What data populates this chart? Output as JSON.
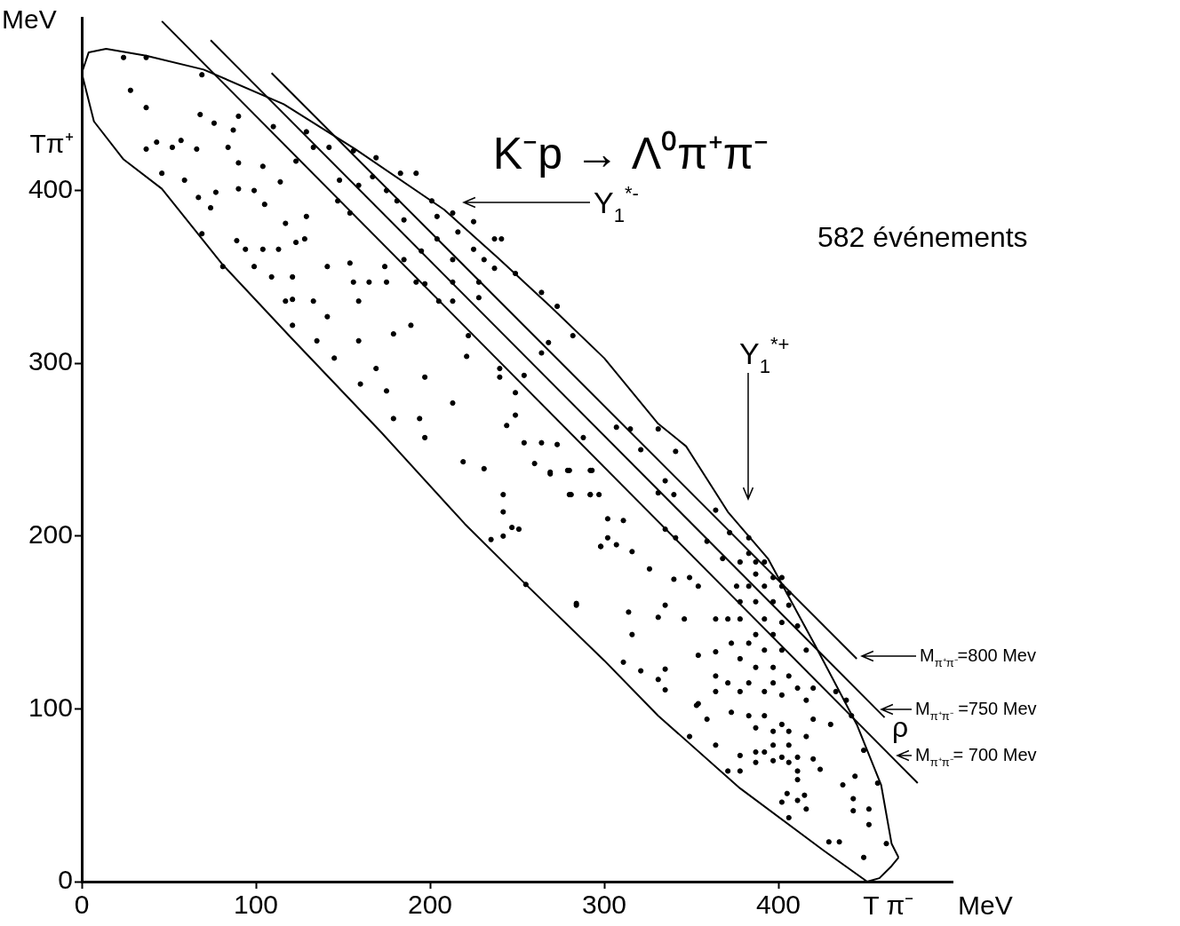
{
  "chart_data": {
    "type": "scatter",
    "title": "K⁻p → Λ⁰π⁺π⁻",
    "xlabel": "T π⁻",
    "ylabel": "Tπ⁺",
    "xlim": [
      0,
      500
    ],
    "ylim": [
      0,
      500
    ],
    "xticks": [
      0,
      100,
      200,
      300,
      400
    ],
    "yticks": [
      0,
      100,
      200,
      300,
      400
    ],
    "grid": false,
    "legend": false,
    "marker": "circle",
    "series": [
      {
        "color": "#000000",
        "x": [
          24,
          37,
          28,
          37,
          69,
          68,
          76,
          90,
          87,
          37,
          43,
          52,
          57,
          46,
          59,
          66,
          67,
          74,
          77,
          69,
          84,
          90,
          90,
          99,
          104,
          110,
          105,
          114,
          117,
          123,
          129,
          133,
          129,
          142,
          148,
          147,
          154,
          156,
          159,
          167,
          169,
          175,
          183,
          181,
          185,
          192,
          201,
          204,
          213,
          216,
          225,
          237,
          241,
          237,
          249,
          264,
          273,
          282,
          268,
          264,
          225,
          231,
          204,
          213,
          195,
          185,
          174,
          165,
          156,
          154,
          141,
          159,
          175,
          192,
          197,
          205,
          213,
          213,
          228,
          228,
          222,
          221,
          240,
          240,
          254,
          249,
          213,
          197,
          179,
          189,
          179,
          194,
          175,
          160,
          169,
          159,
          141,
          121,
          135,
          145,
          121,
          133,
          117,
          109,
          121,
          99,
          94,
          104,
          113,
          89,
          81,
          123,
          128,
          244,
          254,
          249,
          264,
          273,
          288,
          307,
          315,
          331,
          341,
          321,
          269,
          280,
          292,
          281,
          292,
          297,
          335,
          331,
          340,
          302,
          311,
          302,
          307,
          298,
          316,
          335,
          341,
          326,
          340,
          349,
          354,
          284,
          314,
          335,
          316,
          346,
          364,
          371,
          359,
          364,
          372,
          383,
          368,
          378,
          383,
          387,
          392,
          387,
          397,
          402,
          376,
          383,
          392,
          402,
          406,
          378,
          387,
          397,
          406,
          378,
          392,
          402,
          411,
          387,
          397,
          373,
          383,
          392,
          402,
          416,
          378,
          387,
          397,
          406,
          364,
          371,
          383,
          397,
          411,
          420,
          378,
          392,
          364,
          402,
          416,
          433,
          439,
          442,
          354,
          359,
          373,
          383,
          392,
          402,
          420,
          430,
          387,
          397,
          406,
          416,
          349,
          364,
          397,
          406,
          378,
          387,
          392,
          402,
          411,
          449,
          387,
          397,
          406,
          420,
          371,
          378,
          411,
          424,
          411,
          444,
          437,
          457,
          405,
          415,
          402,
          411,
          443,
          416,
          443,
          452,
          452,
          406,
          429,
          435,
          462,
          449,
          311,
          321,
          335,
          331,
          335,
          354,
          364,
          353,
          331,
          197,
          219,
          231,
          242,
          242,
          247,
          251,
          242,
          235,
          255,
          284,
          260,
          269,
          279,
          293,
          280,
          292,
          298
        ],
        "values": [
          477,
          477,
          458,
          448,
          467,
          444,
          439,
          443,
          435,
          424,
          428,
          425,
          429,
          410,
          406,
          424,
          396,
          390,
          399,
          375,
          425,
          416,
          401,
          400,
          414,
          437,
          392,
          405,
          381,
          417,
          385,
          425,
          434,
          425,
          406,
          394,
          387,
          423,
          403,
          408,
          419,
          400,
          410,
          394,
          383,
          410,
          394,
          385,
          387,
          376,
          382,
          372,
          372,
          355,
          352,
          341,
          333,
          316,
          312,
          306,
          366,
          360,
          372,
          360,
          365,
          360,
          356,
          347,
          347,
          358,
          356,
          336,
          347,
          347,
          346,
          336,
          336,
          347,
          347,
          338,
          316,
          304,
          297,
          292,
          293,
          283,
          277,
          292,
          317,
          322,
          268,
          268,
          284,
          288,
          297,
          313,
          327,
          322,
          313,
          303,
          337,
          336,
          336,
          350,
          350,
          356,
          366,
          366,
          366,
          371,
          356,
          370,
          372,
          264,
          254,
          270,
          254,
          253,
          257,
          263,
          262,
          262,
          249,
          250,
          237,
          238,
          238,
          224,
          224,
          224,
          232,
          225,
          224,
          210,
          209,
          199,
          195,
          194,
          191,
          204,
          199,
          181,
          175,
          176,
          171,
          160,
          156,
          160,
          143,
          152,
          152,
          152,
          197,
          215,
          202,
          199,
          187,
          185,
          190,
          185,
          185,
          178,
          176,
          176,
          171,
          171,
          171,
          171,
          167,
          162,
          162,
          162,
          160,
          152,
          152,
          150,
          148,
          143,
          143,
          138,
          138,
          134,
          134,
          134,
          129,
          124,
          124,
          119,
          119,
          115,
          115,
          115,
          112,
          112,
          110,
          110,
          110,
          108,
          105,
          110,
          105,
          96,
          103,
          94,
          98,
          96,
          96,
          91,
          94,
          91,
          89,
          87,
          87,
          84,
          84,
          79,
          79,
          79,
          73,
          75,
          75,
          72,
          72,
          76,
          69,
          70,
          69,
          71,
          64,
          64,
          64,
          65,
          59,
          61,
          56,
          57,
          51,
          50,
          46,
          47,
          48,
          42,
          41,
          42,
          33,
          37,
          23,
          23,
          22,
          14,
          127,
          122,
          123,
          117,
          111,
          131,
          133,
          102,
          153,
          257,
          243,
          239,
          224,
          214,
          205,
          204,
          200,
          198,
          172,
          161,
          242,
          236,
          238,
          238,
          224,
          224,
          194
        ]
      },
      {
        "type": "line",
        "color": "#000000",
        "marker": "none",
        "x": [
          0,
          4,
          14,
          37,
          70,
          116,
          157,
          208,
          239,
          269,
          300,
          331,
          347,
          371,
          394,
          421,
          445,
          459,
          465,
          469
        ],
        "values": [
          468,
          480,
          482,
          478,
          470,
          450,
          424,
          389,
          361,
          333,
          303,
          265,
          252,
          214,
          187,
          137,
          91,
          56,
          22,
          14
        ]
      },
      {
        "type": "line",
        "color": "#000000",
        "marker": "none",
        "x": [
          0,
          7,
          24,
          46,
          81,
          120,
          172,
          220,
          254,
          300,
          331,
          378,
          426,
          451,
          458,
          465,
          469
        ],
        "values": [
          468,
          440,
          418,
          401,
          357,
          315,
          260,
          207,
          173,
          128,
          96,
          54,
          18,
          0,
          2,
          9,
          14
        ]
      },
      {
        "type": "line",
        "color": "#000000",
        "marker": "none",
        "x": [
          46,
          480
        ],
        "values": [
          498,
          57
        ]
      },
      {
        "type": "line",
        "color": "#000000",
        "marker": "none",
        "x": [
          74,
          461
        ],
        "values": [
          487,
          95
        ]
      },
      {
        "type": "line",
        "color": "#000000",
        "marker": "none",
        "x": [
          109,
          445
        ],
        "values": [
          468,
          129
        ]
      }
    ],
    "annotations": [
      "Y$_{1}$$^{*-}$",
      "Y$_{1}$$^{*+}$",
      "M$_{π⁺π⁻}$=800 Mev",
      "M$_{π⁺π⁻}$ =750 Mev",
      "M$_{π⁺π⁻}$= 700 Mev",
      "ρ",
      "582 événements",
      "MeV",
      "MeV"
    ]
  }
}
